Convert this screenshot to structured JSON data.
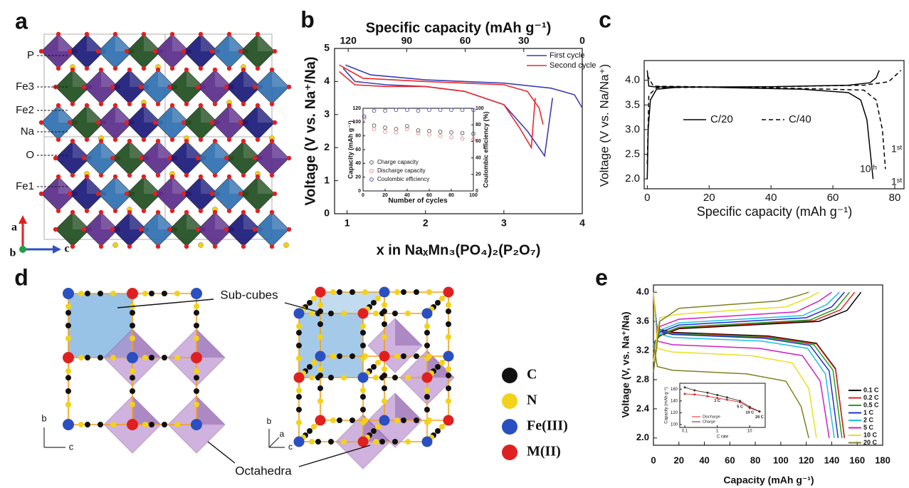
{
  "panels": {
    "a": {
      "label": "a",
      "atoms": [
        {
          "name": "P",
          "color": "#5b2d8c"
        },
        {
          "name": "Fe3",
          "color": "#1f4d1f"
        },
        {
          "name": "Fe2",
          "color": "#2e6fb0"
        },
        {
          "name": "Na",
          "color": "#b08a00"
        },
        {
          "name": "O",
          "color": "#e02020"
        },
        {
          "name": "Fe1",
          "color": "#1a1a7a"
        }
      ],
      "axes": [
        "a",
        "b",
        "c"
      ]
    },
    "d": {
      "label": "d",
      "callouts": [
        "Sub-cubes",
        "Octahedra"
      ],
      "legend": [
        {
          "name": "C",
          "color": "#111111"
        },
        {
          "name": "N",
          "color": "#f2d21b"
        },
        {
          "name": "Fe(III)",
          "color": "#2a4fc0"
        },
        {
          "name": "M(II)",
          "color": "#e02020"
        }
      ],
      "axes_left": [
        "b",
        "c"
      ],
      "axes_right": [
        "b",
        "a",
        "c"
      ]
    }
  },
  "chart_data": [
    {
      "panel": "b",
      "type": "line",
      "xlabel": "x in NaₓMn₃(PO₄)₂(P₂O₇)",
      "x2label": "Specific capacity (mAh g⁻¹)",
      "ylabel": "Voltage (V vs. Na⁺/Na)",
      "xlim": [
        0.84,
        4
      ],
      "xticks": [
        1,
        2,
        3,
        4
      ],
      "x2lim": [
        127,
        0
      ],
      "x2ticks": [
        120,
        90,
        60,
        30,
        0
      ],
      "ylim": [
        0,
        5
      ],
      "yticks": [
        0,
        1,
        2,
        3,
        4,
        5
      ],
      "legend": "upper right",
      "series": [
        {
          "name": "First cycle",
          "color": "#3a3fb0",
          "x": [
            0.98,
            1.3,
            2.0,
            3.0,
            3.6,
            3.9,
            4.0,
            null,
            3.62,
            3.52,
            3.3,
            3.0,
            2.5,
            2.0,
            1.5,
            1.1,
            0.95
          ],
          "values": [
            4.5,
            4.2,
            4.05,
            3.95,
            3.8,
            3.6,
            3.2,
            null,
            3.5,
            1.75,
            2.5,
            3.3,
            3.7,
            3.85,
            3.9,
            4.0,
            4.4
          ]
        },
        {
          "name": "Second cycle",
          "color": "#e8292e",
          "x": [
            0.9,
            1.2,
            2.0,
            3.0,
            3.3,
            3.45,
            3.5,
            null,
            3.4,
            3.35,
            3.2,
            3.0,
            2.5,
            2.0,
            1.5,
            1.1,
            0.9
          ],
          "values": [
            4.5,
            4.1,
            4.0,
            3.9,
            3.7,
            3.2,
            2.7,
            null,
            3.5,
            2.0,
            2.6,
            3.3,
            3.7,
            3.85,
            3.85,
            3.9,
            4.3
          ]
        }
      ],
      "inset": {
        "type": "scatter",
        "xlabel": "Number of cycles",
        "ylabel": "Capacity (mAh g⁻¹)",
        "y2label": "Coulombic efficiency (%)",
        "xlim": [
          0,
          100
        ],
        "xticks": [
          0,
          20,
          40,
          60,
          80,
          100
        ],
        "ylim": [
          0,
          120
        ],
        "yticks": [
          0,
          20,
          40,
          60,
          80,
          100,
          120
        ],
        "y2lim": [
          0,
          100
        ],
        "y2ticks": [
          0,
          20,
          40,
          60,
          80,
          100
        ],
        "x": [
          1,
          10,
          20,
          30,
          40,
          50,
          60,
          70,
          80,
          90,
          100
        ],
        "series": [
          {
            "name": "Charge capacity",
            "color": "#555555",
            "values": [
              108,
              95,
              92,
              90,
              94,
              88,
              87,
              86,
              85,
              84,
              83
            ]
          },
          {
            "name": "Discharge capacity",
            "color": "#e88888",
            "values": [
              105,
              90,
              86,
              85,
              90,
              84,
              82,
              80,
              78,
              76,
              75
            ]
          },
          {
            "name": "Coulombic efficiency",
            "color": "#5555aa",
            "axis": "y2",
            "values": [
              90,
              97,
              97,
              98,
              98,
              97,
              98,
              98,
              98,
              98,
              98
            ]
          }
        ]
      }
    },
    {
      "panel": "c",
      "type": "line",
      "xlabel": "Specific capacity (mAh g⁻¹)",
      "ylabel": "Voltage (V vs. Na/Na⁺)",
      "xlim": [
        -1,
        83
      ],
      "xticks": [
        0,
        20,
        40,
        60,
        80
      ],
      "ylim": [
        1.8,
        4.4
      ],
      "yticks": [
        {
          "value": 2,
          "label": "2.0"
        },
        {
          "value": 2.5,
          "label": "2.5"
        },
        {
          "value": 3,
          "label": "3.0"
        },
        {
          "value": 3.5,
          "label": "3.5"
        },
        {
          "value": 4,
          "label": "4.0"
        }
      ],
      "series": [
        {
          "name": "C/20",
          "color": "#000000",
          "dash": "solid",
          "x": [
            0,
            0.3,
            1,
            3,
            10,
            40,
            65,
            72,
            74,
            75,
            null,
            0,
            0.5,
            2,
            20,
            50,
            65,
            69,
            71,
            72,
            73
          ],
          "values": [
            2.0,
            3.0,
            3.6,
            3.82,
            3.86,
            3.87,
            3.9,
            3.95,
            4.05,
            4.2,
            null,
            4.2,
            3.88,
            3.87,
            3.86,
            3.82,
            3.75,
            3.6,
            3.2,
            2.6,
            2.0
          ]
        },
        {
          "name": "C/40",
          "color": "#000000",
          "dash": "dashed",
          "x": [
            0,
            0.5,
            3,
            40,
            70,
            78,
            82,
            null,
            0,
            2,
            40,
            70,
            74,
            76,
            77
          ],
          "values": [
            2.3,
            3.7,
            3.85,
            3.87,
            3.9,
            3.97,
            4.2,
            null,
            4.1,
            3.88,
            3.85,
            3.8,
            3.6,
            3.0,
            2.2
          ]
        }
      ],
      "annotations": [
        "10ᵗʰ",
        "1ˢᵗ",
        "1ˢᵗ"
      ]
    },
    {
      "panel": "e",
      "type": "line",
      "xlabel": "Capacity (mAh g⁻¹)",
      "ylabel": "Voltage (V, vs. Na⁺/Na)",
      "xlim": [
        0,
        180
      ],
      "xticks": [
        0,
        20,
        40,
        60,
        80,
        100,
        120,
        140,
        160,
        180
      ],
      "ylim": [
        1.9,
        4.1
      ],
      "yticks": [
        {
          "value": 2,
          "label": "2.0"
        },
        {
          "value": 2.4,
          "label": "2.4"
        },
        {
          "value": 2.8,
          "label": "2.8"
        },
        {
          "value": 3.2,
          "label": "3.2"
        },
        {
          "value": 3.6,
          "label": "3.6"
        },
        {
          "value": 4,
          "label": "4.0"
        }
      ],
      "legend": "lower right",
      "series": [
        {
          "name": "0.1 C",
          "color": "#000000",
          "x": [
            0,
            3,
            15,
            90,
            128,
            143,
            150,
            null,
            0,
            5,
            20,
            130,
            152,
            163
          ],
          "values": [
            3.9,
            3.5,
            3.45,
            3.4,
            3.3,
            2.95,
            2.0,
            null,
            3.3,
            3.4,
            3.5,
            3.6,
            3.75,
            4.0
          ]
        },
        {
          "name": "0.2 C",
          "color": "#e02020",
          "x": [
            0,
            3,
            15,
            90,
            128,
            143,
            150,
            null,
            0,
            5,
            20,
            126,
            147,
            158
          ],
          "values": [
            3.92,
            3.49,
            3.44,
            3.39,
            3.29,
            2.94,
            2.0,
            null,
            3.3,
            3.41,
            3.51,
            3.61,
            3.76,
            4.0
          ]
        },
        {
          "name": "0.5 C",
          "color": "#20a020",
          "x": [
            0,
            3,
            15,
            89,
            126,
            141,
            148,
            null,
            0,
            5,
            20,
            123,
            143,
            154
          ],
          "values": [
            3.94,
            3.48,
            3.43,
            3.38,
            3.28,
            2.93,
            2.0,
            null,
            3.28,
            3.42,
            3.52,
            3.62,
            3.77,
            4.0
          ]
        },
        {
          "name": "1 C",
          "color": "#2030d0",
          "x": [
            0,
            3,
            15,
            87,
            123,
            138,
            145,
            null,
            0,
            5,
            20,
            120,
            140,
            150
          ],
          "values": [
            3.96,
            3.47,
            3.42,
            3.37,
            3.27,
            2.92,
            2.0,
            null,
            3.25,
            3.45,
            3.55,
            3.65,
            3.8,
            4.0
          ]
        },
        {
          "name": "2 C",
          "color": "#20c0e0",
          "x": [
            0,
            3,
            15,
            85,
            121,
            135,
            142,
            null,
            0,
            5,
            20,
            117,
            136,
            146
          ],
          "values": [
            3.98,
            3.43,
            3.38,
            3.33,
            3.23,
            2.88,
            2.0,
            null,
            3.22,
            3.48,
            3.58,
            3.68,
            3.83,
            4.0
          ]
        },
        {
          "name": "5 C",
          "color": "#d020c0",
          "x": [
            0,
            3,
            15,
            83,
            117,
            131,
            138,
            null,
            0,
            5,
            20,
            112,
            130,
            140
          ],
          "values": [
            4.0,
            3.33,
            3.28,
            3.23,
            3.13,
            2.78,
            2.0,
            null,
            3.15,
            3.53,
            3.63,
            3.73,
            3.88,
            4.0
          ]
        },
        {
          "name": "10 C",
          "color": "#e8e020",
          "x": [
            0,
            3,
            15,
            77,
            109,
            122,
            128,
            null,
            0,
            5,
            20,
            104,
            121,
            130
          ],
          "values": [
            4.0,
            3.23,
            3.18,
            3.13,
            3.03,
            2.68,
            2.0,
            null,
            3.05,
            3.65,
            3.7,
            3.8,
            3.92,
            4.0
          ]
        },
        {
          "name": "20 C",
          "color": "#808020",
          "x": [
            0,
            3,
            15,
            73,
            104,
            116,
            122,
            null,
            0,
            5,
            20,
            98,
            113,
            122
          ],
          "values": [
            3.3,
            2.98,
            2.93,
            2.88,
            2.78,
            2.43,
            2.0,
            null,
            2.9,
            3.6,
            3.78,
            3.88,
            3.95,
            4.0
          ]
        }
      ],
      "inset": {
        "type": "line",
        "log_x": true,
        "xlabel": "C rate",
        "ylabel": "Capacity (mAh g⁻¹)",
        "xlim": [
          0.07,
          30
        ],
        "xticks": [
          0.1,
          1,
          10
        ],
        "ylim": [
          95,
          170
        ],
        "yticks": [
          100,
          120,
          140,
          160
        ],
        "x": [
          0.1,
          0.2,
          0.5,
          1,
          2,
          5,
          10,
          20
        ],
        "point_labels": [
          null,
          null,
          null,
          "1 C",
          null,
          "5 C",
          "10 C",
          "20 C"
        ],
        "series": [
          {
            "name": "Discharge",
            "color": "#e02020",
            "values": [
              152,
              151,
              148,
              145,
              142,
              138,
              128,
              122
            ]
          },
          {
            "name": "Charge",
            "color": "#333333",
            "values": [
              163,
              158,
              154,
              150,
              146,
              140,
              130,
              122
            ]
          }
        ]
      }
    }
  ]
}
